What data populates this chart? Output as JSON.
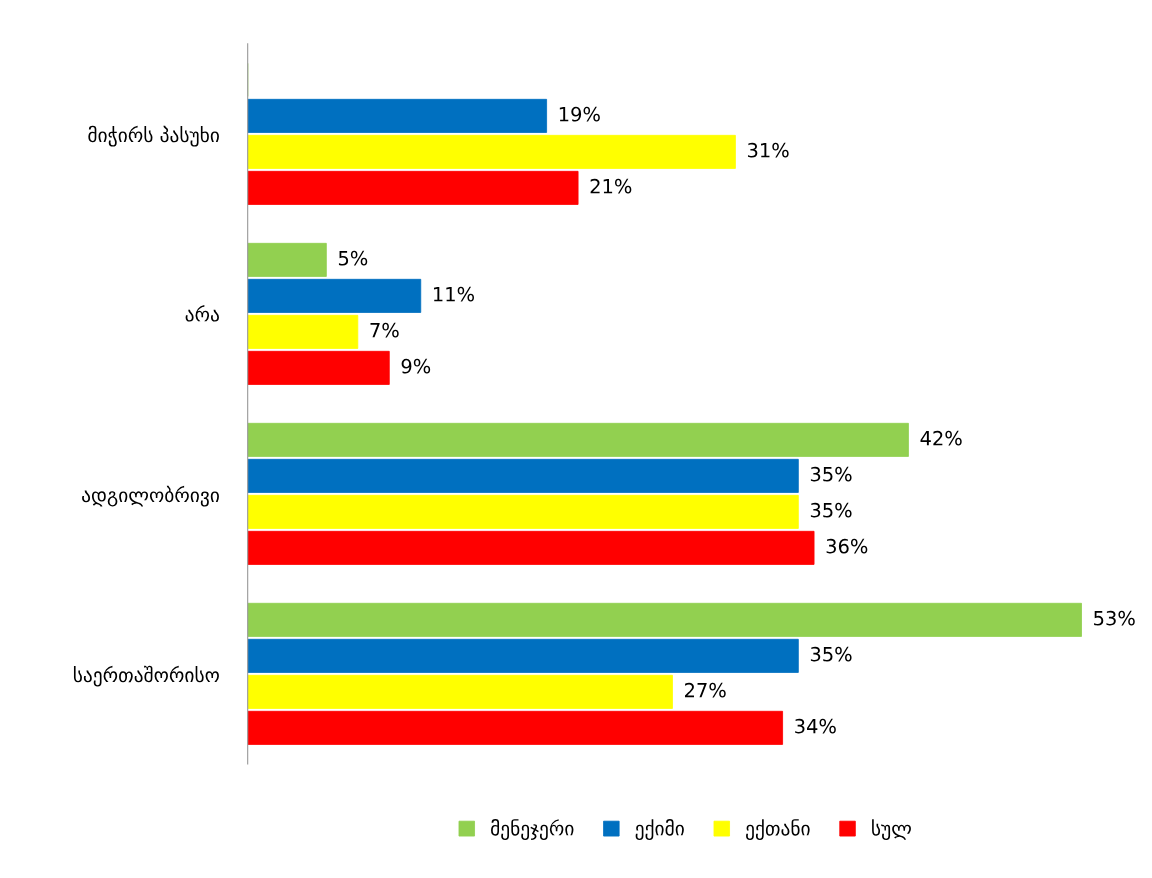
{
  "chart_data": {
    "type": "bar",
    "orientation": "horizontal",
    "categories": [
      "მიჭირს პასუხი",
      "არა",
      "ადგილობრივი",
      "საერთაშორისო"
    ],
    "series": [
      {
        "name": "მენეჯერი",
        "color": "#92d050",
        "values": [
          0,
          5,
          42,
          53
        ],
        "value_labels": [
          null,
          "5%",
          "42%",
          "53%"
        ]
      },
      {
        "name": "ექიმი",
        "color": "#0070c0",
        "values": [
          19,
          11,
          35,
          35
        ],
        "value_labels": [
          "19%",
          "11%",
          "35%",
          "35%"
        ]
      },
      {
        "name": "ექთანი",
        "color": "#ffff00",
        "values": [
          31,
          7,
          35,
          27
        ],
        "value_labels": [
          "31%",
          "7%",
          "35%",
          "27%"
        ]
      },
      {
        "name": "სულ",
        "color": "#ff0000",
        "values": [
          21,
          9,
          36,
          34
        ],
        "value_labels": [
          "21%",
          "9%",
          "36%",
          "34%"
        ]
      }
    ],
    "tick_labels": "y",
    "grid": false,
    "legend": "bottom"
  }
}
